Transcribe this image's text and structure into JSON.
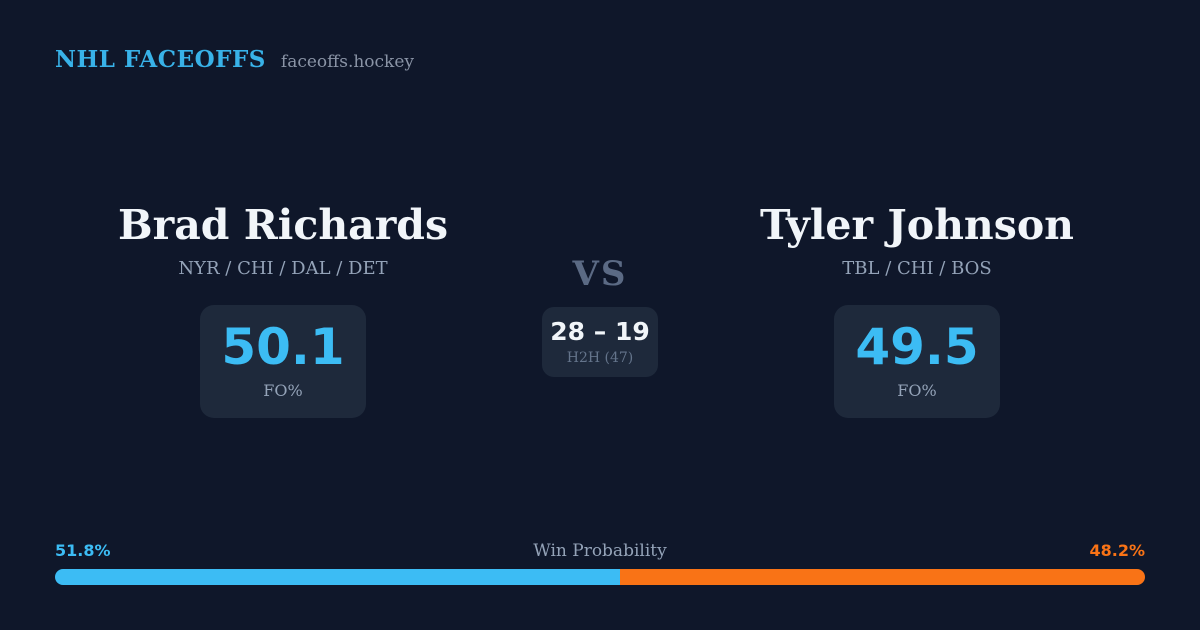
{
  "header": {
    "brand": "NHL FACEOFFS",
    "site": "faceoffs.hockey"
  },
  "players": {
    "left": {
      "name": "Brad Richards",
      "teams": "NYR / CHI / DAL / DET",
      "fo_value": "50.1",
      "fo_label": "FO%"
    },
    "right": {
      "name": "Tyler Johnson",
      "teams": "TBL / CHI / BOS",
      "fo_value": "49.5",
      "fo_label": "FO%"
    }
  },
  "center": {
    "vs_label": "VS",
    "h2h_score": "28 – 19",
    "h2h_label": "H2H (47)"
  },
  "win_probability": {
    "label": "Win Probability",
    "left_pct_label": "51.8%",
    "right_pct_label": "48.2%",
    "left_value": 51.8,
    "right_value": 48.2
  },
  "colors": {
    "background": "#0f172a",
    "card": "#1e293b",
    "accent_blue": "#3cbcf4",
    "header_blue": "#38b2e8",
    "accent_orange": "#f97316",
    "text_primary": "#f1f5f9",
    "text_muted": "#94a3b8",
    "text_dim": "#64748b",
    "vs_color": "#5b6a84",
    "site_gray": "#8a94a6"
  },
  "chart_data": {
    "type": "bar",
    "title": "Win Probability",
    "categories": [
      "Brad Richards",
      "Tyler Johnson"
    ],
    "values": [
      51.8,
      48.2
    ],
    "unit": "%",
    "colors": [
      "#3cbcf4",
      "#f97316"
    ],
    "layout": "single horizontal stacked bar, left=blue, right=orange"
  }
}
